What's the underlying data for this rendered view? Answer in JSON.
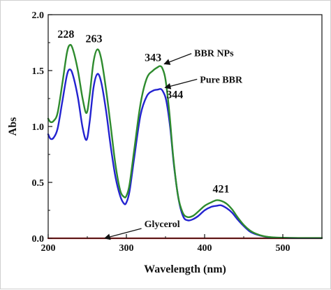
{
  "chart_data": {
    "type": "line",
    "title": "",
    "xlabel": "Wavelength (nm)",
    "ylabel": "Abs",
    "xlim": [
      200,
      550
    ],
    "ylim": [
      0.0,
      2.0
    ],
    "xticks": [
      {
        "value": 200,
        "label": "200"
      },
      {
        "value": 300,
        "label": "300"
      },
      {
        "value": 400,
        "label": "400"
      },
      {
        "value": 500,
        "label": "500"
      }
    ],
    "yticks": [
      {
        "value": 0.0,
        "label": "0.0"
      },
      {
        "value": 0.5,
        "label": "0.5"
      },
      {
        "value": 1.0,
        "label": "1.0"
      },
      {
        "value": 1.5,
        "label": "1.5"
      },
      {
        "value": 2.0,
        "label": "2.0"
      }
    ],
    "grid": false,
    "legend": "none",
    "series": [
      {
        "name": "BBR NPs",
        "color": "#2e8b2e",
        "x": [
          200,
          203,
          207,
          212,
          218,
          224,
          228,
          232,
          238,
          244,
          249,
          253,
          258,
          263,
          268,
          274,
          280,
          286,
          292,
          297,
          300,
          304,
          310,
          318,
          326,
          334,
          340,
          343,
          346,
          350,
          355,
          360,
          366,
          372,
          378,
          385,
          392,
          400,
          408,
          415,
          421,
          428,
          435,
          442,
          450,
          458,
          466,
          475,
          485,
          500,
          520,
          550
        ],
        "y": [
          1.07,
          1.04,
          1.05,
          1.12,
          1.38,
          1.66,
          1.73,
          1.68,
          1.5,
          1.25,
          1.12,
          1.28,
          1.58,
          1.69,
          1.6,
          1.33,
          1.0,
          0.66,
          0.43,
          0.37,
          0.38,
          0.48,
          0.79,
          1.2,
          1.43,
          1.5,
          1.53,
          1.54,
          1.52,
          1.42,
          1.12,
          0.72,
          0.38,
          0.23,
          0.19,
          0.2,
          0.24,
          0.29,
          0.32,
          0.34,
          0.335,
          0.31,
          0.26,
          0.19,
          0.12,
          0.07,
          0.04,
          0.02,
          0.01,
          0.005,
          0.003,
          0.003
        ]
      },
      {
        "name": "Pure BBR",
        "color": "#2323d0",
        "x": [
          200,
          203,
          207,
          212,
          218,
          224,
          228,
          232,
          238,
          244,
          249,
          253,
          258,
          263,
          268,
          274,
          280,
          286,
          292,
          297,
          300,
          304,
          310,
          318,
          326,
          334,
          340,
          344,
          347,
          351,
          356,
          361,
          367,
          373,
          379,
          385,
          392,
          400,
          408,
          415,
          421,
          428,
          435,
          442,
          450,
          458,
          466,
          475,
          485,
          500,
          520,
          550
        ],
        "y": [
          0.93,
          0.89,
          0.9,
          0.98,
          1.22,
          1.46,
          1.51,
          1.45,
          1.26,
          0.99,
          0.88,
          1.04,
          1.35,
          1.47,
          1.39,
          1.14,
          0.82,
          0.55,
          0.38,
          0.31,
          0.32,
          0.42,
          0.72,
          1.1,
          1.27,
          1.32,
          1.33,
          1.335,
          1.31,
          1.23,
          0.99,
          0.64,
          0.34,
          0.19,
          0.16,
          0.17,
          0.2,
          0.25,
          0.28,
          0.29,
          0.295,
          0.27,
          0.23,
          0.17,
          0.11,
          0.06,
          0.035,
          0.018,
          0.008,
          0.004,
          0.002,
          0.002
        ]
      },
      {
        "name": "Glycerol",
        "color": "#cc2020",
        "x": [
          200,
          300,
          400,
          500,
          550
        ],
        "y": [
          0.0,
          0.0,
          0.0,
          0.0,
          0.0
        ]
      }
    ],
    "peak_labels": [
      {
        "text": "228",
        "x": 228,
        "y": 1.73
      },
      {
        "text": "263",
        "x": 263,
        "y": 1.69
      },
      {
        "text": "343",
        "x": 343,
        "y": 1.54
      },
      {
        "text": "344",
        "x": 344,
        "y": 1.335
      },
      {
        "text": "421",
        "x": 421,
        "y": 0.335
      }
    ],
    "annotations": [
      {
        "text": "BBR NPs",
        "series": "BBR NPs",
        "x": 343,
        "y": 1.54
      },
      {
        "text": "Pure BBR",
        "series": "Pure BBR",
        "x": 344,
        "y": 1.335
      },
      {
        "text": "Glycerol",
        "series": "Glycerol",
        "x": 330,
        "y": 0.0
      }
    ]
  }
}
